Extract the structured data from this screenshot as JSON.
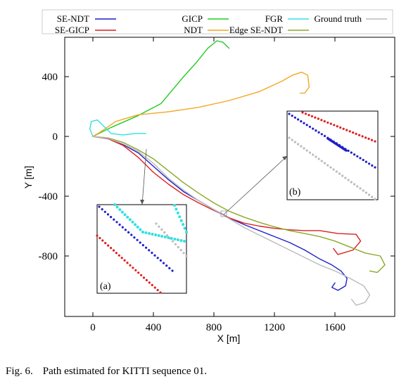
{
  "figure": {
    "caption_label": "Fig. 6.",
    "caption_text": "Path estimated for KITTI sequence 01."
  },
  "chart_data": {
    "type": "line",
    "title": "",
    "xlabel": "X [m]",
    "ylabel": "Y [m]",
    "xlim": [
      -200,
      2000
    ],
    "ylim": [
      -1200,
      650
    ],
    "x_ticks": [
      0,
      400,
      800,
      1200,
      1600
    ],
    "y_ticks": [
      400,
      0,
      -400,
      -800
    ],
    "grid": false,
    "legend": "top (two rows above plot)",
    "series": [
      {
        "name": "SE-NDT",
        "color": "#1f1fcc",
        "points": [
          [
            0,
            0
          ],
          [
            100,
            -15
          ],
          [
            200,
            -55
          ],
          [
            300,
            -110
          ],
          [
            400,
            -200
          ],
          [
            500,
            -290
          ],
          [
            600,
            -370
          ],
          [
            700,
            -430
          ],
          [
            800,
            -490
          ],
          [
            900,
            -545
          ],
          [
            1000,
            -590
          ],
          [
            1100,
            -630
          ],
          [
            1200,
            -670
          ],
          [
            1300,
            -710
          ],
          [
            1400,
            -760
          ],
          [
            1500,
            -820
          ],
          [
            1580,
            -860
          ],
          [
            1640,
            -900
          ],
          [
            1680,
            -950
          ],
          [
            1670,
            -1000
          ],
          [
            1620,
            -1030
          ],
          [
            1580,
            -1010
          ],
          [
            1600,
            -980
          ]
        ]
      },
      {
        "name": "SE-GICP",
        "color": "#dd1f1f",
        "points": [
          [
            0,
            0
          ],
          [
            100,
            -15
          ],
          [
            200,
            -60
          ],
          [
            300,
            -140
          ],
          [
            400,
            -240
          ],
          [
            500,
            -320
          ],
          [
            600,
            -390
          ],
          [
            700,
            -445
          ],
          [
            800,
            -495
          ],
          [
            900,
            -545
          ],
          [
            1000,
            -580
          ],
          [
            1100,
            -600
          ],
          [
            1200,
            -615
          ],
          [
            1300,
            -625
          ],
          [
            1400,
            -630
          ],
          [
            1500,
            -630
          ],
          [
            1620,
            -650
          ],
          [
            1740,
            -655
          ],
          [
            1770,
            -700
          ],
          [
            1720,
            -760
          ],
          [
            1620,
            -790
          ],
          [
            1590,
            -750
          ]
        ]
      },
      {
        "name": "GICP",
        "color": "#22cc22",
        "points": [
          [
            0,
            0
          ],
          [
            120,
            60
          ],
          [
            300,
            140
          ],
          [
            450,
            220
          ],
          [
            600,
            400
          ],
          [
            680,
            490
          ],
          [
            760,
            590
          ],
          [
            820,
            640
          ],
          [
            860,
            630
          ],
          [
            900,
            590
          ]
        ]
      },
      {
        "name": "NDT",
        "color": "#f5a623",
        "points": [
          [
            0,
            0
          ],
          [
            50,
            30
          ],
          [
            150,
            100
          ],
          [
            300,
            145
          ],
          [
            500,
            165
          ],
          [
            700,
            195
          ],
          [
            900,
            240
          ],
          [
            1100,
            300
          ],
          [
            1250,
            370
          ],
          [
            1320,
            410
          ],
          [
            1380,
            430
          ],
          [
            1420,
            410
          ],
          [
            1430,
            330
          ],
          [
            1400,
            290
          ],
          [
            1370,
            290
          ]
        ]
      },
      {
        "name": "FGR",
        "color": "#33e0e0",
        "points": [
          [
            0,
            0
          ],
          [
            -20,
            50
          ],
          [
            -10,
            100
          ],
          [
            30,
            110
          ],
          [
            70,
            70
          ],
          [
            120,
            20
          ],
          [
            200,
            10
          ],
          [
            280,
            20
          ],
          [
            350,
            20
          ]
        ]
      },
      {
        "name": "Edge SE-NDT",
        "color": "#8aa82a",
        "points": [
          [
            0,
            0
          ],
          [
            100,
            -10
          ],
          [
            200,
            -40
          ],
          [
            300,
            -90
          ],
          [
            400,
            -150
          ],
          [
            500,
            -230
          ],
          [
            600,
            -310
          ],
          [
            700,
            -380
          ],
          [
            800,
            -445
          ],
          [
            900,
            -500
          ],
          [
            1000,
            -540
          ],
          [
            1100,
            -575
          ],
          [
            1200,
            -605
          ],
          [
            1300,
            -630
          ],
          [
            1400,
            -650
          ],
          [
            1500,
            -670
          ],
          [
            1600,
            -700
          ],
          [
            1700,
            -740
          ],
          [
            1800,
            -780
          ],
          [
            1900,
            -800
          ],
          [
            1930,
            -860
          ],
          [
            1880,
            -910
          ],
          [
            1830,
            -900
          ]
        ]
      },
      {
        "name": "Ground truth",
        "color": "#bbbbbb",
        "points": [
          [
            0,
            0
          ],
          [
            100,
            -12
          ],
          [
            200,
            -50
          ],
          [
            300,
            -100
          ],
          [
            400,
            -180
          ],
          [
            500,
            -280
          ],
          [
            600,
            -360
          ],
          [
            700,
            -430
          ],
          [
            800,
            -490
          ],
          [
            900,
            -550
          ],
          [
            1000,
            -610
          ],
          [
            1100,
            -660
          ],
          [
            1200,
            -710
          ],
          [
            1300,
            -760
          ],
          [
            1400,
            -810
          ],
          [
            1500,
            -860
          ],
          [
            1600,
            -900
          ],
          [
            1700,
            -950
          ],
          [
            1790,
            -1000
          ],
          [
            1830,
            -1060
          ],
          [
            1800,
            -1110
          ],
          [
            1740,
            -1130
          ],
          [
            1710,
            -1090
          ]
        ]
      }
    ],
    "insets": [
      {
        "label": "(a)"
      },
      {
        "label": "(b)"
      }
    ]
  }
}
